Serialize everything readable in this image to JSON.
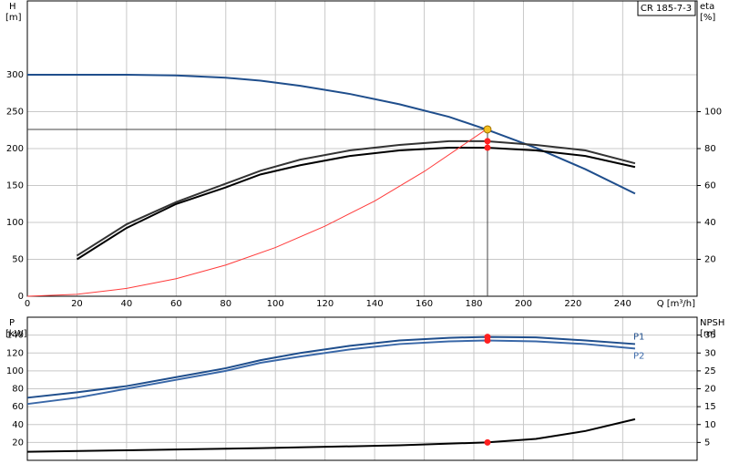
{
  "chart_data": [
    {
      "type": "line",
      "label": "CR 185-7-3",
      "y_label": "H",
      "y_unit": "[m]",
      "y2_label": "eta",
      "y2_unit": "[%]",
      "x_label": "Q [m³/h]",
      "xlim": [
        0,
        270
      ],
      "xticks": [
        0,
        20,
        40,
        60,
        80,
        100,
        120,
        140,
        160,
        180,
        200,
        220,
        240
      ],
      "show_xtick_labels": true,
      "ylim": [
        0,
        400
      ],
      "yticks": [
        0,
        50,
        100,
        150,
        200,
        250,
        300
      ],
      "y2lim": [
        0,
        160
      ],
      "y2ticks": [
        20,
        40,
        60,
        80,
        100
      ],
      "grid": true,
      "series": [
        {
          "color": "#1f4e8c",
          "x": [
            0,
            20,
            40,
            60,
            80,
            94,
            110,
            130,
            150,
            170,
            185,
            205,
            225,
            245
          ],
          "values": [
            300,
            300,
            300,
            299,
            296,
            292,
            285,
            274,
            260,
            243,
            226,
            201,
            172,
            139
          ]
        },
        {
          "color": "#333333",
          "axis": "y2",
          "x": [
            20,
            40,
            60,
            80,
            94,
            110,
            130,
            150,
            170,
            185,
            205,
            225,
            245
          ],
          "values": [
            22,
            39,
            51,
            61,
            68,
            74,
            79,
            82,
            84,
            84,
            82,
            79,
            72
          ]
        },
        {
          "color": "#000000",
          "axis": "y2",
          "x": [
            20,
            40,
            60,
            80,
            94,
            110,
            130,
            150,
            170,
            185,
            205,
            225,
            245
          ],
          "values": [
            20,
            37,
            50,
            59,
            66,
            71,
            76,
            79,
            80.5,
            80.5,
            79,
            76,
            70
          ]
        },
        {
          "color": "#ff3b3b",
          "x": [
            0,
            20,
            40,
            60,
            80,
            100,
            120,
            140,
            160,
            185
          ],
          "values": [
            0,
            2.6,
            10.6,
            23.8,
            42.3,
            66,
            95,
            129,
            169,
            226
          ]
        }
      ],
      "operating_point": {
        "x": 185.5,
        "value": 226,
        "color": "#f4c020"
      },
      "markers": [
        {
          "x": 185.5,
          "value": 84,
          "axis": "y2",
          "color": "#ff2020"
        },
        {
          "x": 185.5,
          "value": 80.5,
          "axis": "y2",
          "color": "#ff2020"
        }
      ]
    },
    {
      "type": "line",
      "y_label": "P",
      "y_unit": "[kW]",
      "y2_label": "NPSH",
      "y2_unit": "[m]",
      "xlim": [
        0,
        270
      ],
      "xticks": [
        0,
        20,
        40,
        60,
        80,
        100,
        120,
        140,
        160,
        180,
        200,
        220,
        240
      ],
      "show_xtick_labels": false,
      "ylim": [
        0,
        160
      ],
      "yticks": [
        20,
        40,
        60,
        80,
        100,
        120,
        140
      ],
      "y2lim": [
        0,
        40
      ],
      "y2ticks": [
        5,
        10,
        15,
        20,
        25,
        30,
        35
      ],
      "grid": true,
      "series": [
        {
          "name": "P1",
          "color": "#1f4e8c",
          "x": [
            0,
            20,
            40,
            60,
            80,
            94,
            110,
            130,
            150,
            170,
            185,
            205,
            225,
            245
          ],
          "values": [
            70,
            76,
            83,
            93,
            103,
            112,
            120,
            128,
            134,
            137,
            138,
            137.5,
            134,
            130
          ]
        },
        {
          "name": "P2",
          "color": "#3a68a8",
          "x": [
            0,
            20,
            40,
            60,
            80,
            94,
            110,
            130,
            150,
            170,
            185,
            205,
            225,
            245
          ],
          "values": [
            63,
            70,
            80,
            90,
            100,
            109,
            116,
            124,
            130,
            133,
            134,
            133,
            130,
            125
          ]
        },
        {
          "color": "#000000",
          "axis": "y2",
          "x": [
            0,
            40,
            94,
            150,
            185,
            205,
            225,
            245
          ],
          "values": [
            2.4,
            2.8,
            3.4,
            4.2,
            5,
            6,
            8.2,
            11.5
          ]
        }
      ],
      "markers": [
        {
          "x": 185.5,
          "value": 138,
          "color": "#ff2020"
        },
        {
          "x": 185.5,
          "value": 134,
          "color": "#ff2020"
        },
        {
          "x": 185.5,
          "value": 5,
          "axis": "y2",
          "color": "#ff2020"
        }
      ]
    }
  ]
}
